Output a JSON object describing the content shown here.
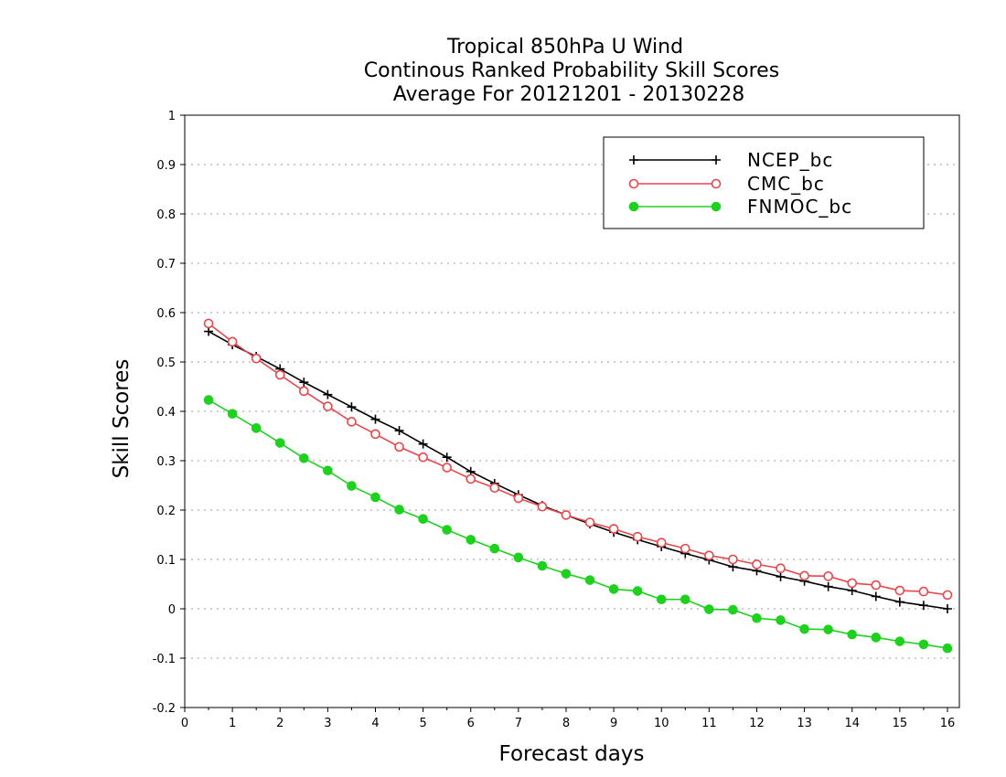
{
  "chart_data": {
    "type": "line",
    "title": [
      "Tropical 850hPa U Wind",
      "Continous Ranked Probability Skill Scores",
      "Average For 20121201 - 20130228"
    ],
    "xlabel": "Forecast days",
    "ylabel": "Skill Scores",
    "xlim": [
      0,
      16.25
    ],
    "ylim": [
      -0.2,
      1
    ],
    "xticks": [
      0,
      1,
      2,
      3,
      4,
      5,
      6,
      7,
      8,
      9,
      10,
      11,
      12,
      13,
      14,
      15,
      16
    ],
    "yticks": [
      -0.2,
      -0.1,
      0,
      0.1,
      0.2,
      0.3,
      0.4,
      0.5,
      0.6,
      0.7,
      0.8,
      0.9,
      1
    ],
    "grid": "horizontal dotted",
    "legend_position": "top-right",
    "x": [
      0.5,
      1,
      1.5,
      2,
      2.5,
      3,
      3.5,
      4,
      4.5,
      5,
      5.5,
      6,
      6.5,
      7,
      7.5,
      8,
      8.5,
      9,
      9.5,
      10,
      10.5,
      11,
      11.5,
      12,
      12.5,
      13,
      13.5,
      14,
      14.5,
      15,
      15.5,
      16
    ],
    "series": [
      {
        "name": "NCEP_bc",
        "color": "#000000",
        "marker": "plus",
        "values": [
          0.562,
          0.535,
          0.511,
          0.486,
          0.459,
          0.434,
          0.409,
          0.384,
          0.361,
          0.334,
          0.307,
          0.278,
          0.254,
          0.231,
          0.209,
          0.19,
          0.172,
          0.155,
          0.14,
          0.126,
          0.112,
          0.099,
          0.085,
          0.077,
          0.065,
          0.056,
          0.045,
          0.037,
          0.025,
          0.014,
          0.007,
          0.0
        ]
      },
      {
        "name": "CMC_bc",
        "color": "#e8474a",
        "marker": "open-circle",
        "values": [
          0.578,
          0.541,
          0.507,
          0.474,
          0.441,
          0.41,
          0.379,
          0.354,
          0.328,
          0.307,
          0.286,
          0.263,
          0.245,
          0.224,
          0.207,
          0.19,
          0.175,
          0.162,
          0.146,
          0.134,
          0.122,
          0.108,
          0.1,
          0.09,
          0.082,
          0.067,
          0.066,
          0.052,
          0.048,
          0.037,
          0.035,
          0.028
        ]
      },
      {
        "name": "FNMOC_bc",
        "color": "#1ed11e",
        "marker": "filled-circle",
        "values": [
          0.423,
          0.395,
          0.366,
          0.336,
          0.305,
          0.28,
          0.249,
          0.226,
          0.201,
          0.182,
          0.16,
          0.14,
          0.122,
          0.104,
          0.087,
          0.071,
          0.058,
          0.04,
          0.036,
          0.019,
          0.019,
          -0.001,
          -0.002,
          -0.019,
          -0.023,
          -0.041,
          -0.042,
          -0.052,
          -0.058,
          -0.066,
          -0.072,
          -0.08
        ]
      }
    ]
  }
}
